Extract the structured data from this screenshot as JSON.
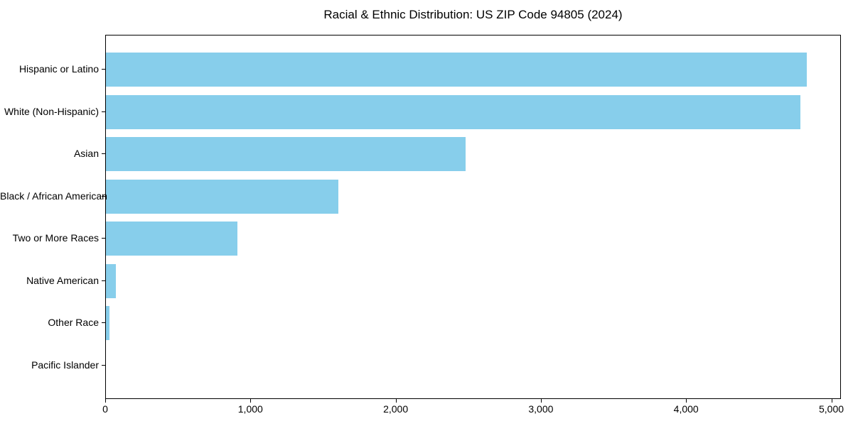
{
  "title": "Racial & Ethnic Distribution: US ZIP Code 94805 (2024)",
  "colors": {
    "bar": "#87CEEB",
    "axis": "#000000",
    "text": "#000000",
    "background": "#FFFFFF"
  },
  "chart_data": {
    "type": "bar",
    "orientation": "horizontal",
    "title": "Racial & Ethnic Distribution: US ZIP Code 94805 (2024)",
    "xlabel": "",
    "ylabel": "",
    "categories": [
      "Hispanic or Latino",
      "White (Non-Hispanic)",
      "Asian",
      "Black / African American",
      "Two or More Races",
      "Native American",
      "Other Race",
      "Pacific Islander"
    ],
    "values": [
      4825,
      4783,
      2475,
      1600,
      905,
      70,
      25,
      0
    ],
    "xlim": [
      0,
      5066
    ],
    "x_ticks": [
      0,
      1000,
      2000,
      3000,
      4000,
      5000
    ],
    "x_tick_labels": [
      "0",
      "1,000",
      "2,000",
      "3,000",
      "4,000",
      "5,000"
    ],
    "bar_color": "#87CEEB",
    "grid": false,
    "legend": false
  }
}
